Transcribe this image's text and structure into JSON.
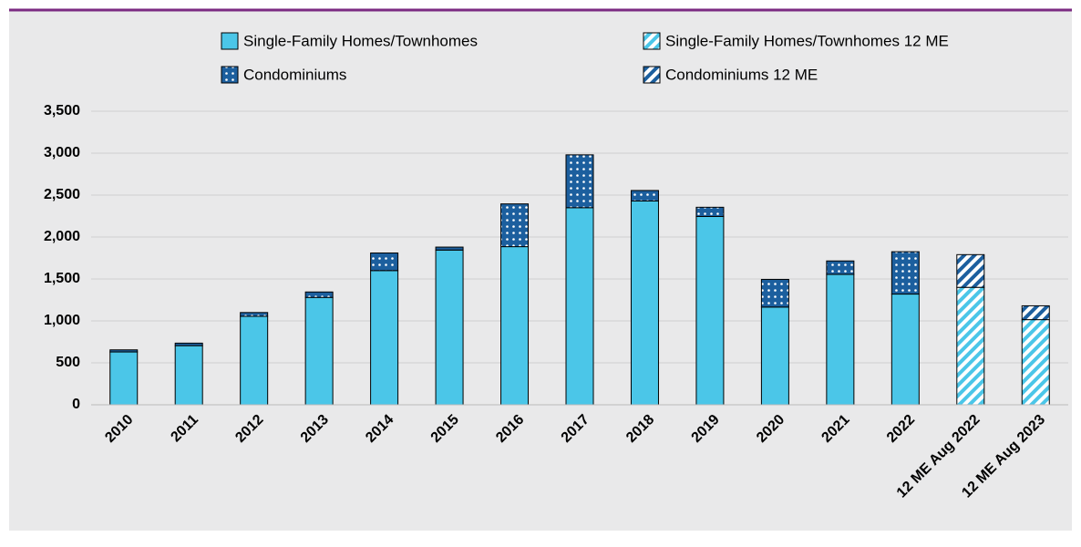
{
  "chart_data": {
    "type": "stacked_bar",
    "categories": [
      "2010",
      "2011",
      "2012",
      "2013",
      "2014",
      "2015",
      "2016",
      "2017",
      "2018",
      "2019",
      "2020",
      "2021",
      "2022",
      "12 ME Aug 2022",
      "12 ME Aug 2023"
    ],
    "series": [
      {
        "name": "Single-Family Homes/Townhomes",
        "color": "#4bc6e8",
        "pattern": "solid",
        "values": [
          630,
          705,
          1055,
          1280,
          1600,
          1845,
          1885,
          2350,
          2430,
          2245,
          1165,
          1555,
          1320,
          null,
          null
        ]
      },
      {
        "name": "Condominiums",
        "color": "#1c5f9e",
        "pattern": "dots",
        "values": [
          25,
          30,
          45,
          65,
          210,
          35,
          510,
          630,
          125,
          110,
          330,
          160,
          505,
          null,
          null
        ]
      },
      {
        "name": "Single-Family Homes/Townhomes 12 ME",
        "color": "#4bc6e8",
        "pattern": "stripes",
        "values": [
          null,
          null,
          null,
          null,
          null,
          null,
          null,
          null,
          null,
          null,
          null,
          null,
          null,
          1400,
          1015
        ]
      },
      {
        "name": "Condominiums 12 ME",
        "color": "#1c5f9e",
        "pattern": "stripes",
        "values": [
          null,
          null,
          null,
          null,
          null,
          null,
          null,
          null,
          null,
          null,
          null,
          null,
          null,
          390,
          165
        ]
      }
    ],
    "ylim": [
      0,
      3500
    ],
    "yticks": [
      0,
      500,
      {
        "value": 1000,
        "label": "1,000"
      },
      {
        "value": 1500,
        "label": "1,500"
      },
      {
        "value": 2000,
        "label": "2,000"
      },
      {
        "value": 2500,
        "label": "2,500"
      },
      {
        "value": 3000,
        "label": "3,000"
      },
      {
        "value": 3500,
        "label": "3,500"
      }
    ],
    "grid": true
  }
}
